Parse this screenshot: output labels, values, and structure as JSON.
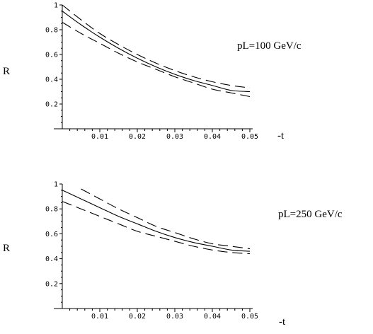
{
  "chart_data": [
    {
      "type": "line",
      "annotation": "pL=100 GeV/c",
      "xlabel": "-t",
      "ylabel": "R",
      "xlim": [
        0,
        0.05
      ],
      "ylim": [
        0,
        1
      ],
      "xticks": [
        "0.01",
        "0.02",
        "0.03",
        "0.04",
        "0.05"
      ],
      "yticks": [
        "0.2",
        "0.4",
        "0.6",
        "0.8",
        "1"
      ],
      "xtick_values": [
        0.01,
        0.02,
        0.03,
        0.04,
        0.05
      ],
      "ytick_values": [
        0.2,
        0.4,
        0.6,
        0.8,
        1
      ],
      "x": [
        0,
        0.005,
        0.01,
        0.015,
        0.02,
        0.025,
        0.03,
        0.035,
        0.04,
        0.045,
        0.05
      ],
      "series": [
        {
          "style": "solid",
          "values": [
            0.95,
            0.84,
            0.74,
            0.65,
            0.57,
            0.5,
            0.44,
            0.39,
            0.35,
            0.31,
            0.3
          ]
        },
        {
          "style": "dashed",
          "values": [
            1.0,
            0.88,
            0.77,
            0.68,
            0.6,
            0.53,
            0.47,
            0.42,
            0.38,
            0.35,
            0.33
          ]
        },
        {
          "style": "dashed",
          "values": [
            0.86,
            0.77,
            0.69,
            0.61,
            0.54,
            0.48,
            0.42,
            0.37,
            0.32,
            0.29,
            0.26
          ]
        }
      ]
    },
    {
      "type": "line",
      "annotation": "pL=250 GeV/c",
      "xlabel": "-t",
      "ylabel": "R",
      "xlim": [
        0,
        0.05
      ],
      "ylim": [
        0,
        1
      ],
      "xticks": [
        "0.01",
        "0.02",
        "0.03",
        "0.04",
        "0.05"
      ],
      "yticks": [
        "0.2",
        "0.4",
        "0.6",
        "0.8",
        "1"
      ],
      "xtick_values": [
        0.01,
        0.02,
        0.03,
        0.04,
        0.05
      ],
      "ytick_values": [
        0.2,
        0.4,
        0.6,
        0.8,
        1
      ],
      "x": [
        0,
        0.005,
        0.01,
        0.015,
        0.02,
        0.025,
        0.03,
        0.035,
        0.04,
        0.045,
        0.05
      ],
      "series": [
        {
          "style": "solid",
          "values": [
            0.95,
            0.88,
            0.81,
            0.74,
            0.68,
            0.62,
            0.57,
            0.53,
            0.5,
            0.47,
            0.46
          ]
        },
        {
          "style": "dashed",
          "values": [
            null,
            0.96,
            0.88,
            0.8,
            0.73,
            0.66,
            0.61,
            0.56,
            0.52,
            0.5,
            0.48
          ]
        },
        {
          "style": "dashed",
          "values": [
            0.86,
            0.8,
            0.74,
            0.68,
            0.62,
            0.58,
            0.54,
            0.5,
            0.47,
            0.45,
            0.44
          ]
        }
      ]
    }
  ]
}
